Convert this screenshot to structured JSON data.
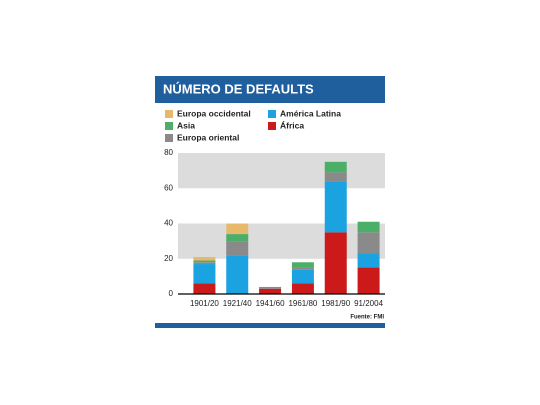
{
  "chart_data": {
    "type": "stacked_bar",
    "title": "NÚMERO DE DEFAULTS",
    "source": "Fuente: FMI",
    "categories": [
      "1901/20",
      "1921/40",
      "1941/60",
      "1961/80",
      "1981/90",
      "91/2004"
    ],
    "series": [
      {
        "name": "África",
        "color": "#cc1a1a",
        "values": [
          6,
          0,
          3,
          6,
          35,
          15
        ]
      },
      {
        "name": "América Latina",
        "color": "#1aa3e0",
        "values": [
          11,
          22,
          0,
          8,
          29,
          8
        ]
      },
      {
        "name": "Europa oriental",
        "color": "#8a8a8a",
        "values": [
          1,
          8,
          1,
          1,
          5,
          12
        ]
      },
      {
        "name": "Asia",
        "color": "#4caf68",
        "values": [
          1,
          4,
          0,
          3,
          6,
          6
        ]
      },
      {
        "name": "Europa occidental",
        "color": "#e8b96a",
        "values": [
          2,
          6,
          0,
          0,
          0,
          0
        ]
      }
    ],
    "ylim": [
      0,
      80
    ],
    "yticks": [
      0,
      20,
      40,
      60,
      80
    ],
    "grid": "bands"
  }
}
